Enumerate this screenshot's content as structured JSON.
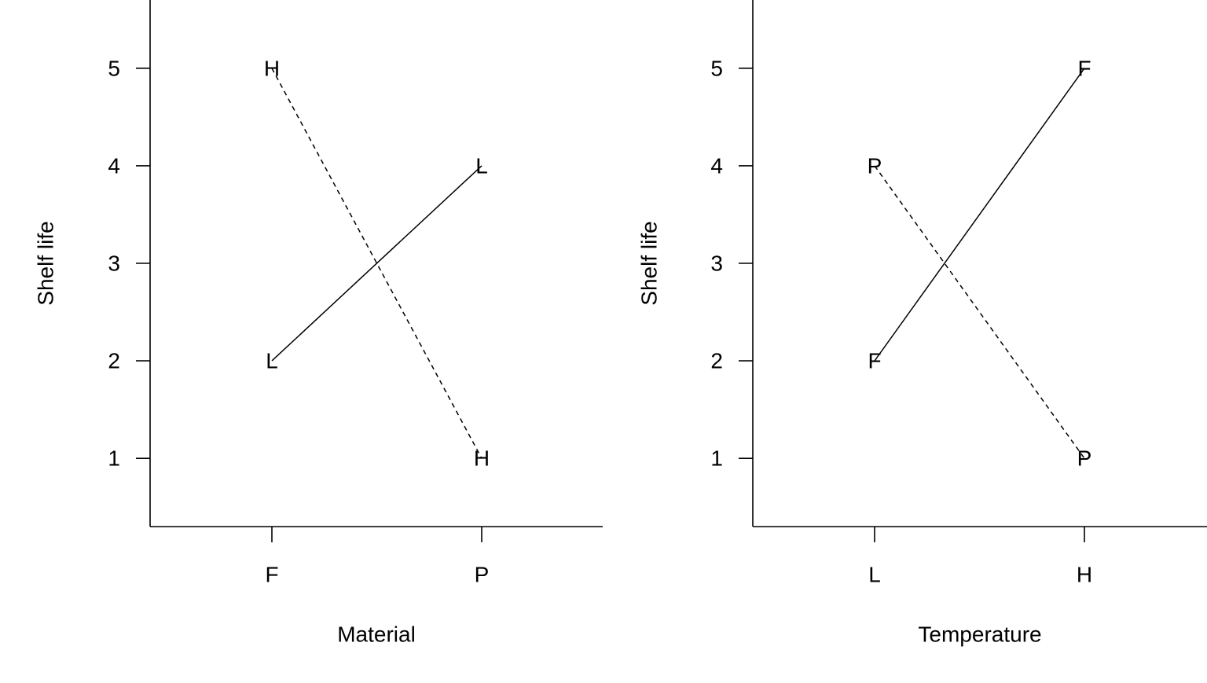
{
  "chart_data": [
    {
      "type": "line",
      "xlabel": "Material",
      "ylabel": "Shelf life",
      "categories": [
        "F",
        "P"
      ],
      "yticks": [
        1,
        2,
        3,
        4,
        5
      ],
      "ylim": [
        0.3,
        5.7
      ],
      "series": [
        {
          "name": "L",
          "values": [
            2,
            4
          ],
          "line_style": "solid"
        },
        {
          "name": "H",
          "values": [
            5,
            1
          ],
          "line_style": "dashed"
        }
      ]
    },
    {
      "type": "line",
      "xlabel": "Temperature",
      "ylabel": "Shelf life",
      "categories": [
        "L",
        "H"
      ],
      "yticks": [
        1,
        2,
        3,
        4,
        5
      ],
      "ylim": [
        0.3,
        5.7
      ],
      "series": [
        {
          "name": "F",
          "values": [
            2,
            5
          ],
          "line_style": "solid"
        },
        {
          "name": "P",
          "values": [
            4,
            1
          ],
          "line_style": "dashed"
        }
      ]
    }
  ]
}
